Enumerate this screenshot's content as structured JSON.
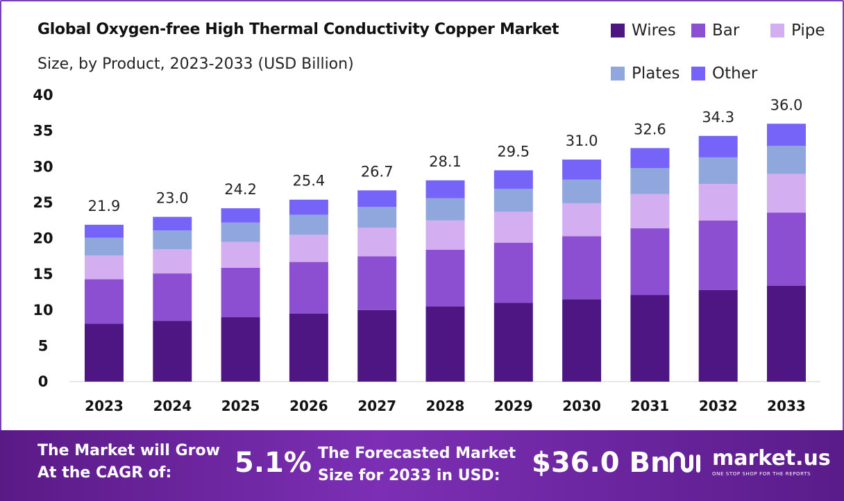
{
  "header": {
    "title": "Global Oxygen-free High Thermal Conductivity Copper Market",
    "subtitle": "Size, by Product, 2023-2033 (USD Billion)"
  },
  "legend": [
    {
      "name": "Wires",
      "color": "#4e1683"
    },
    {
      "name": "Bar",
      "color": "#8c4fd2"
    },
    {
      "name": "Pipe",
      "color": "#d3aef0"
    },
    {
      "name": "Plates",
      "color": "#8fa7dd"
    },
    {
      "name": "Other",
      "color": "#7663f7"
    }
  ],
  "chart_data": {
    "type": "bar",
    "stacked": true,
    "categories": [
      "2023",
      "2024",
      "2025",
      "2026",
      "2027",
      "2028",
      "2029",
      "2030",
      "2031",
      "2032",
      "2033"
    ],
    "series": [
      {
        "name": "Wires",
        "color": "#4e1683",
        "values": [
          8.1,
          8.5,
          9.0,
          9.5,
          10.0,
          10.5,
          11.0,
          11.5,
          12.1,
          12.8,
          13.4
        ]
      },
      {
        "name": "Bar",
        "color": "#8c4fd2",
        "values": [
          6.2,
          6.6,
          6.9,
          7.2,
          7.5,
          7.9,
          8.4,
          8.8,
          9.3,
          9.7,
          10.2
        ]
      },
      {
        "name": "Pipe",
        "color": "#d3aef0",
        "values": [
          3.3,
          3.4,
          3.6,
          3.8,
          4.0,
          4.1,
          4.3,
          4.6,
          4.8,
          5.1,
          5.4
        ]
      },
      {
        "name": "Plates",
        "color": "#8fa7dd",
        "values": [
          2.5,
          2.6,
          2.7,
          2.8,
          2.9,
          3.1,
          3.2,
          3.3,
          3.6,
          3.7,
          3.9
        ]
      },
      {
        "name": "Other",
        "color": "#7663f7",
        "values": [
          1.8,
          1.9,
          2.0,
          2.1,
          2.3,
          2.5,
          2.6,
          2.8,
          2.8,
          3.0,
          3.1
        ]
      }
    ],
    "totals": [
      21.9,
      23.0,
      24.2,
      25.4,
      26.7,
      28.1,
      29.5,
      31.0,
      32.6,
      34.3,
      36.0
    ],
    "total_labels": [
      "21.9",
      "23.0",
      "24.2",
      "25.4",
      "26.7",
      "28.1",
      "29.5",
      "31.0",
      "32.6",
      "34.3",
      "36.0"
    ],
    "y_ticks": [
      0,
      5,
      10,
      15,
      20,
      25,
      30,
      35,
      40
    ],
    "ylim": [
      0,
      40
    ],
    "grid": false
  },
  "footer": {
    "cagr_label_line1": "The Market will Grow",
    "cagr_label_line2": "At the CAGR of:",
    "cagr_value": "5.1%",
    "forecast_label_line1": "The Forecasted Market",
    "forecast_label_line2": "Size for 2033 in USD:",
    "forecast_value": "$36.0 Bn",
    "brand_name": "market.us",
    "brand_tagline": "ONE STOP SHOP FOR THE REPORTS",
    "background_color": "#6a2a9e"
  }
}
